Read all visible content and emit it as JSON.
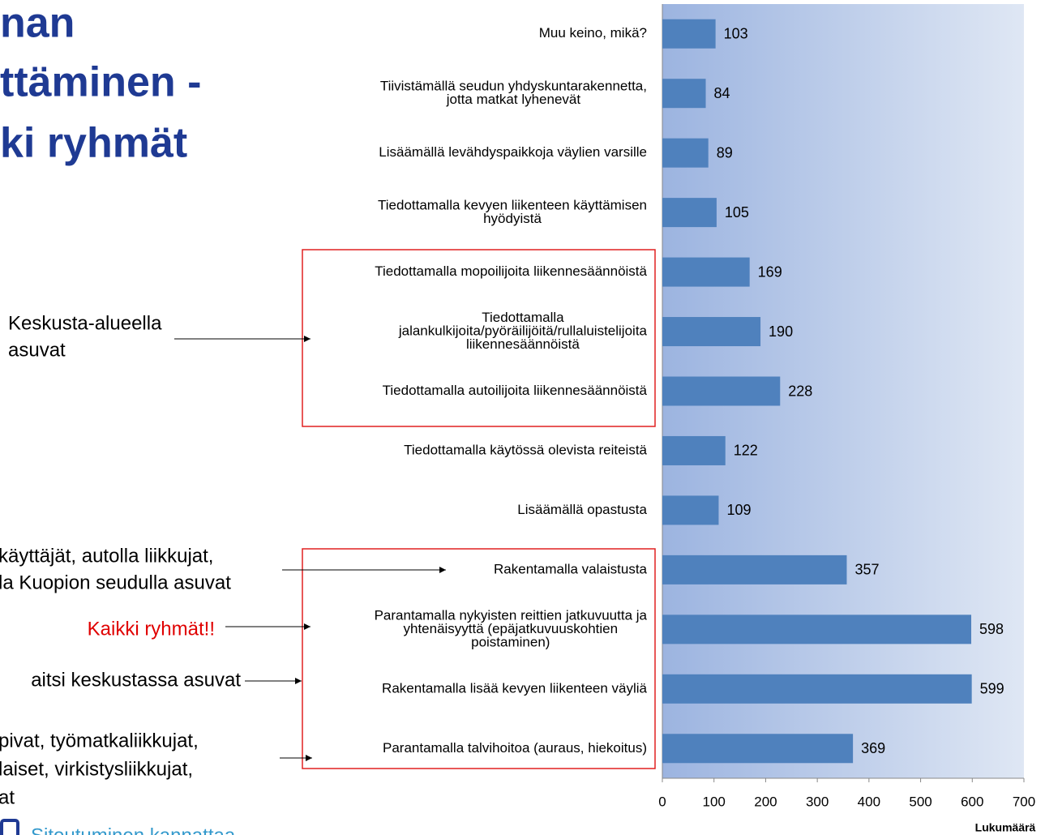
{
  "title_lines": [
    "nan",
    "ttäminen -",
    "ki ryhmät"
  ],
  "annotations": {
    "center": [
      "Keskusta-alueella",
      "asuvat"
    ],
    "group1": [
      "käyttäjät, autolla liikkujat,",
      "la Kuopion seudulla asuvat"
    ],
    "all": "Kaikki ryhmät!!",
    "group2": "aitsi keskustassa asuvat",
    "group3": [
      "pivat, työmatkaliikkujat,",
      "laiset, virkistysliikkujat,",
      "at"
    ]
  },
  "footer": "Sitoutuminen kannattaa",
  "chart_data": {
    "type": "bar",
    "orientation": "horizontal",
    "categories": [
      [
        "Muu keino, mikä?"
      ],
      [
        "Tiivistämällä seudun yhdyskuntarakennetta,",
        "jotta matkat lyhenevät"
      ],
      [
        "Lisäämällä levähdyspaikkoja väylien varsille"
      ],
      [
        "Tiedottamalla kevyen liikenteen käyttämisen",
        "hyödyistä"
      ],
      [
        "Tiedottamalla mopoilijoita liikennesäännöistä"
      ],
      [
        "Tiedottamalla",
        "jalankulkijoita/pyöräilijöitä/rullaluistelijoita",
        "liikennesäännöistä"
      ],
      [
        "Tiedottamalla autoilijoita liikennesäännöistä"
      ],
      [
        "Tiedottamalla käytössä olevista reiteistä"
      ],
      [
        "Lisäämällä opastusta"
      ],
      [
        "Rakentamalla valaistusta"
      ],
      [
        "Parantamalla nykyisten reittien jatkuvuutta ja",
        "yhtenäisyyttä  (epäjatkuvuuskohtien",
        "poistaminen)"
      ],
      [
        "Rakentamalla lisää kevyen liikenteen väyliä"
      ],
      [
        "Parantamalla talvihoitoa (auraus, hiekoitus)"
      ]
    ],
    "values": [
      103,
      84,
      89,
      105,
      169,
      190,
      228,
      122,
      109,
      357,
      598,
      599,
      369
    ],
    "color": "#4f81bd",
    "xlim": [
      0,
      700
    ],
    "xticks": [
      0,
      100,
      200,
      300,
      400,
      500,
      600,
      700
    ],
    "xlabel": "Lukumäärä"
  }
}
